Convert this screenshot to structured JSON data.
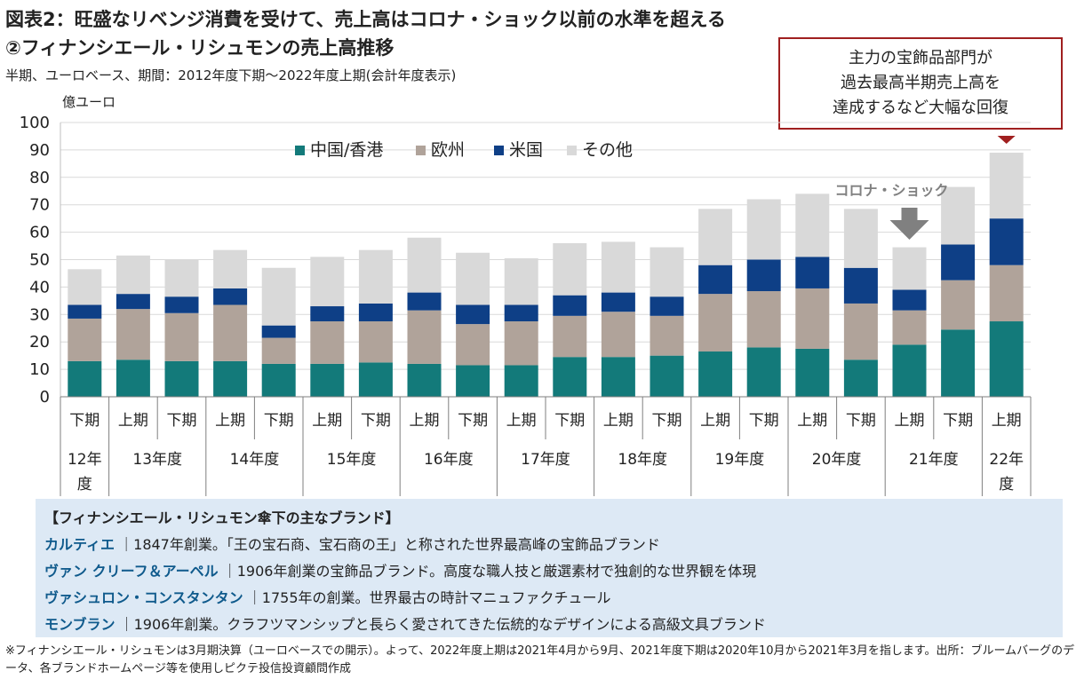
{
  "title_line1": "図表2：旺盛なリベンジ消費を受けて、売上高はコロナ・ショック以前の水準を超える",
  "title_line2": "②フィナンシエール・リシュモンの売上高推移",
  "subtitle": "半期、ユーロベース、期間：2012年度下期～2022年度上期(会計年度表示)",
  "unit": "億ユーロ",
  "callout": {
    "line1": "主力の宝飾品部門が",
    "line2": "過去最高半期売上高を",
    "line3": "達成するなど大幅な回復"
  },
  "annotation_corona": "コロナ・ショック",
  "colors": {
    "china_hk": "#137a7a",
    "europe": "#b0a39a",
    "us": "#0e3f86",
    "other": "#d9d9d9",
    "callout_border": "#a01f1f",
    "arrow": "#808080",
    "brand_name": "#0f5a8c",
    "panel_bg": "#dde9f5"
  },
  "chart_data": {
    "type": "bar",
    "stacked": true,
    "ylim": [
      0,
      100
    ],
    "yticks": [
      0,
      10,
      20,
      30,
      40,
      50,
      60,
      70,
      80,
      90,
      100
    ],
    "grid": true,
    "legend_position": "top-center",
    "categories": [
      "下期",
      "上期",
      "下期",
      "上期",
      "下期",
      "上期",
      "下期",
      "上期",
      "下期",
      "上期",
      "下期",
      "上期",
      "下期",
      "上期",
      "下期",
      "上期",
      "下期",
      "上期",
      "下期",
      "上期"
    ],
    "year_groups": [
      {
        "label": "12年度",
        "count": 1
      },
      {
        "label": "13年度",
        "count": 2
      },
      {
        "label": "14年度",
        "count": 2
      },
      {
        "label": "15年度",
        "count": 2
      },
      {
        "label": "16年度",
        "count": 2
      },
      {
        "label": "17年度",
        "count": 2
      },
      {
        "label": "18年度",
        "count": 2
      },
      {
        "label": "19年度",
        "count": 2
      },
      {
        "label": "20年度",
        "count": 2
      },
      {
        "label": "21年度",
        "count": 2
      },
      {
        "label": "22年度",
        "count": 1
      }
    ],
    "series": [
      {
        "name": "中国/香港",
        "values": [
          13,
          13.5,
          13,
          13,
          12,
          12,
          12.5,
          12,
          11.5,
          11.5,
          14.5,
          14.5,
          15,
          16.5,
          18,
          17.5,
          13.5,
          19,
          24.5,
          27.5
        ]
      },
      {
        "name": "欧州",
        "values": [
          15.5,
          18.5,
          17.5,
          20.5,
          9.5,
          15.5,
          15,
          19.5,
          15,
          16,
          15,
          16.5,
          14.5,
          21,
          20.5,
          22,
          20.5,
          12.5,
          18,
          20.5
        ]
      },
      {
        "name": "米国",
        "values": [
          5,
          5.5,
          6,
          6,
          4.5,
          5.5,
          6.5,
          6.5,
          7,
          6,
          7.5,
          7,
          7,
          10.5,
          11.5,
          11.5,
          13,
          7.5,
          13,
          17
        ]
      },
      {
        "name": "その他",
        "values": [
          13,
          14,
          13.5,
          14,
          21,
          18,
          19.5,
          20,
          19,
          17,
          19,
          18.5,
          18,
          20.5,
          22,
          23,
          21.5,
          15.5,
          21,
          24
        ]
      }
    ]
  },
  "brands": {
    "title": "【フィナンシエール・リシュモン傘下の主なブランド】",
    "items": [
      {
        "name": "カルティエ",
        "desc": "｜1847年創業。「王の宝石商、宝石商の王」と称された世界最高峰の宝飾品ブランド"
      },
      {
        "name": "ヴァン クリーフ＆アーペル",
        "desc": "｜1906年創業の宝飾品ブランド。高度な職人技と厳選素材で独創的な世界観を体現"
      },
      {
        "name": "ヴァシュロン・コンスタンタン",
        "desc": "｜1755年の創業。世界最古の時計マニュファクチュール"
      },
      {
        "name": "モンブラン",
        "desc": "｜1906年創業。クラフツマンシップと長らく愛されてきた伝統的なデザインによる高級文具ブランド"
      }
    ]
  },
  "footnote": "※フィナンシエール・リシュモンは3月期決算（ユーロベースでの開示）。よって、2022年度上期は2021年4月から9月、2021年度下期は2020年10月から2021年3月を指します。出所：ブルームバーグのデータ、各ブランドホームページ等を使用しピクテ投信投資顧問作成"
}
